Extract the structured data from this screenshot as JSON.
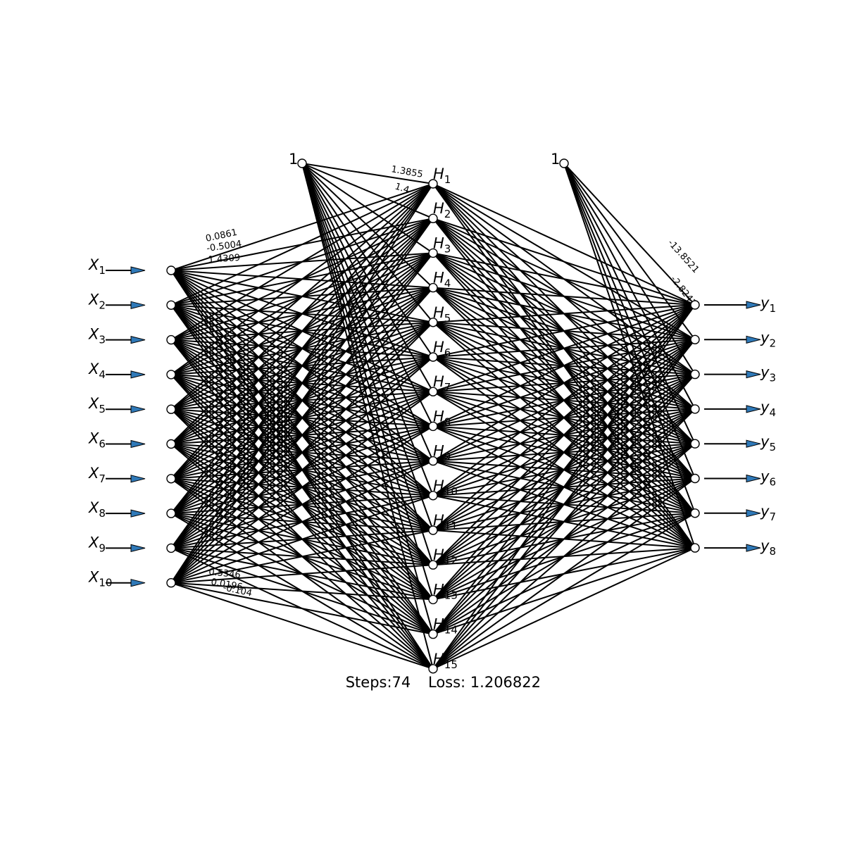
{
  "inputs": [
    "X1",
    "X2",
    "X3",
    "X4",
    "X5",
    "X6",
    "X7",
    "X8",
    "X9",
    "X10"
  ],
  "hidden": [
    "H1",
    "H2",
    "H3",
    "H4",
    "H5",
    "H6",
    "H7",
    "H8",
    "H9",
    "H10",
    "H11",
    "H12",
    "H13",
    "H14",
    "H15"
  ],
  "outputs": [
    "y1",
    "y2",
    "y3",
    "y4",
    "y5",
    "y6",
    "y7",
    "y8"
  ],
  "bias_label": "1",
  "visible_weight_labels": {
    "bias_to_hidden": [
      "1.3855",
      "1.4"
    ],
    "input_to_hidden": [
      "0.0861",
      "-0.5004",
      "1.4309",
      "0.5346",
      "0.0196",
      "-0.104"
    ],
    "bias_to_output": [
      "-13.8521",
      "-2.8241"
    ]
  },
  "footer": {
    "steps": "Steps:74",
    "loss": "Loss: 1.206822"
  },
  "colors": {
    "arrow_fill": "#2f79b8",
    "line": "#000000",
    "node_fill": "#ffffff"
  }
}
